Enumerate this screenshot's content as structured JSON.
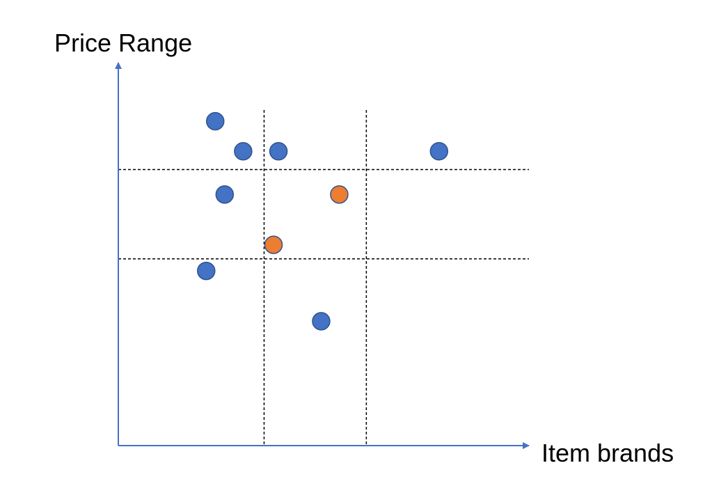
{
  "axes": {
    "y_label": "Price Range",
    "x_label": "Item brands",
    "axis_color": "#4472C4"
  },
  "grid": {
    "line_color": "#000000",
    "line_style": "dashed",
    "vertical_lines": 2,
    "horizontal_lines": 2
  },
  "colors": {
    "blue": "#4472C4",
    "orange": "#ED7D31",
    "outline": "#2F528F"
  },
  "chart_data": {
    "type": "scatter",
    "x_label": "Item brands",
    "y_label": "Price Range",
    "xlim": [
      0,
      100
    ],
    "ylim": [
      0,
      100
    ],
    "grid_x": [
      35.5,
      60.4
    ],
    "grid_y": [
      47.9,
      70.8
    ],
    "points": [
      {
        "x": 23.6,
        "y": 83.2,
        "color": "blue"
      },
      {
        "x": 30.4,
        "y": 75.5,
        "color": "blue"
      },
      {
        "x": 39.0,
        "y": 75.5,
        "color": "blue"
      },
      {
        "x": 78.1,
        "y": 75.5,
        "color": "blue"
      },
      {
        "x": 25.9,
        "y": 64.4,
        "color": "blue"
      },
      {
        "x": 53.8,
        "y": 64.4,
        "color": "orange"
      },
      {
        "x": 37.8,
        "y": 51.5,
        "color": "orange"
      },
      {
        "x": 21.4,
        "y": 44.8,
        "color": "blue"
      },
      {
        "x": 49.4,
        "y": 31.9,
        "color": "blue"
      }
    ]
  }
}
